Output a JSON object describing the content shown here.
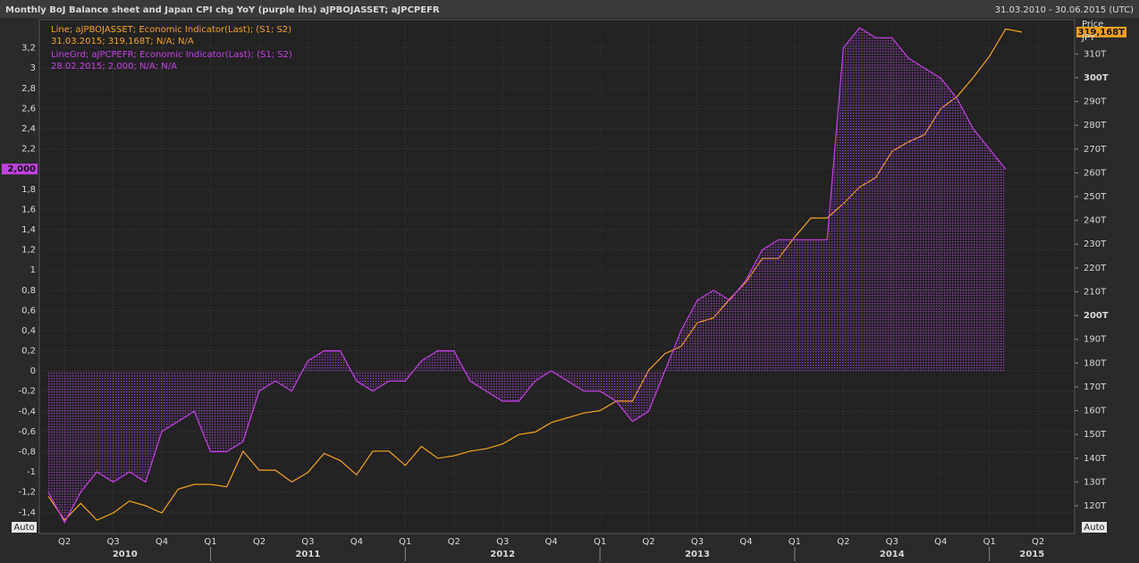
{
  "chart_data": {
    "type": "line",
    "title": "Monthly BoJ Balance sheet and Japan CPI chg YoY (purple lhs) aJPBOJASSET; aJPCPEFR",
    "date_range": "31.03.2010 - 30.06.2015 (UTC)",
    "y2_title": "Price",
    "y2_unit": "JPY",
    "scale_mode": "Auto",
    "categories": [
      null,
      "Q2",
      null,
      null,
      "Q3",
      null,
      null,
      "Q4",
      null,
      null,
      "Q1",
      null,
      null,
      "Q2",
      null,
      null,
      "Q3",
      null,
      null,
      "Q4",
      null,
      null,
      "Q1",
      null,
      null,
      "Q2",
      null,
      null,
      "Q3",
      null,
      null,
      "Q4",
      null,
      null,
      "Q1",
      null,
      null,
      "Q2",
      null,
      null,
      "Q3",
      null,
      null,
      "Q4",
      null,
      null,
      "Q1",
      null,
      null,
      "Q2",
      null,
      null,
      "Q3",
      null,
      null,
      "Q4",
      null,
      null,
      "Q1",
      null,
      null,
      "Q2"
    ],
    "years": [
      "2010",
      "2011",
      "2012",
      "2013",
      "2014",
      "2015"
    ],
    "ylim": [
      -1.61,
      3.48
    ],
    "y2lim": [
      108.35,
      324.4
    ],
    "yticks": [
      {
        "value": -1.4,
        "label": "-1,4"
      },
      {
        "value": -1.2,
        "label": "-1,2"
      },
      -1,
      {
        "value": -0.8,
        "label": "-0,8"
      },
      {
        "value": -0.6,
        "label": "-0,6"
      },
      {
        "value": -0.4,
        "label": "-0,4"
      },
      {
        "value": -0.2,
        "label": "-0,2"
      },
      0,
      {
        "value": 0.2,
        "label": "0,2"
      },
      {
        "value": 0.4,
        "label": "0,4"
      },
      {
        "value": 0.6,
        "label": "0,6"
      },
      {
        "value": 0.8,
        "label": "0,8"
      },
      1,
      {
        "value": 1.2,
        "label": "1,2"
      },
      {
        "value": 1.4,
        "label": "1,4"
      },
      {
        "value": 1.6,
        "label": "1,6"
      },
      {
        "value": 1.8,
        "label": "1,8"
      },
      2,
      {
        "value": 2.2,
        "label": "2,2"
      },
      {
        "value": 2.4,
        "label": "2,4"
      },
      {
        "value": 2.6,
        "label": "2,6"
      },
      {
        "value": 2.8,
        "label": "2,8"
      },
      3,
      {
        "value": 3.2,
        "label": "3,2"
      }
    ],
    "y2ticks": [
      {
        "value": 120,
        "label": "120T"
      },
      {
        "value": 130,
        "label": "130T"
      },
      {
        "value": 140,
        "label": "140T"
      },
      {
        "value": 150,
        "label": "150T"
      },
      {
        "value": 160,
        "label": "160T"
      },
      {
        "value": 170,
        "label": "170T"
      },
      {
        "value": 180,
        "label": "180T"
      },
      {
        "value": 190,
        "label": "190T"
      },
      {
        "value": 200,
        "label": "200T"
      },
      {
        "value": 210,
        "label": "210T"
      },
      {
        "value": 220,
        "label": "220T"
      },
      {
        "value": 230,
        "label": "230T"
      },
      {
        "value": 240,
        "label": "240T"
      },
      {
        "value": 250,
        "label": "250T"
      },
      {
        "value": 260,
        "label": "260T"
      },
      {
        "value": 270,
        "label": "270T"
      },
      {
        "value": 280,
        "label": "280T"
      },
      {
        "value": 290,
        "label": "290T"
      },
      {
        "value": 300,
        "label": "300T"
      },
      {
        "value": 310,
        "label": "310T"
      }
    ],
    "grid": true,
    "series": [
      {
        "name": "Line; aJPBOJASSET; Economic Indicator(Last); (S1; S2)",
        "detail": "31.03.2015; 319,168T; N/A; N/A",
        "color": "#f0a020",
        "axis": "y2",
        "last_label": "319,168T",
        "values": [
          124,
          114,
          121,
          114,
          117,
          122,
          120,
          117,
          127,
          129,
          129,
          128,
          143,
          135,
          135,
          130,
          134,
          142,
          139,
          133,
          143,
          143,
          137,
          145,
          140,
          141,
          143,
          144,
          146,
          150,
          151,
          155,
          157,
          159,
          160,
          164,
          164,
          177,
          184,
          187,
          197,
          199,
          207,
          214,
          224,
          224,
          233,
          241,
          241,
          247,
          254,
          258,
          269,
          273,
          276,
          287,
          292,
          300,
          309,
          320.5,
          319.168,
          null
        ]
      },
      {
        "name": "LineGrd; aJPCPEFR; Economic Indicator(Last); (S1; S2)",
        "detail": "28.02.2015; 2,000; N/A; N/A",
        "color": "#c040e0",
        "axis": "y",
        "fill": true,
        "last_label": "2,000",
        "values": [
          -1.2,
          -1.5,
          -1.2,
          -1.0,
          -1.1,
          -1.0,
          -1.1,
          -0.6,
          -0.5,
          -0.4,
          -0.8,
          -0.8,
          -0.7,
          -0.2,
          -0.1,
          -0.2,
          0.1,
          0.2,
          0.2,
          -0.1,
          -0.2,
          -0.1,
          -0.1,
          0.1,
          0.2,
          0.2,
          -0.1,
          -0.2,
          -0.3,
          -0.3,
          -0.1,
          0.0,
          -0.1,
          -0.2,
          -0.2,
          -0.3,
          -0.5,
          -0.4,
          0.0,
          0.4,
          0.7,
          0.8,
          0.7,
          0.9,
          1.2,
          1.3,
          1.3,
          1.3,
          1.3,
          3.2,
          3.4,
          3.3,
          3.3,
          3.1,
          3.0,
          2.9,
          2.7,
          2.4,
          2.2,
          2.0,
          null,
          null
        ]
      }
    ]
  }
}
